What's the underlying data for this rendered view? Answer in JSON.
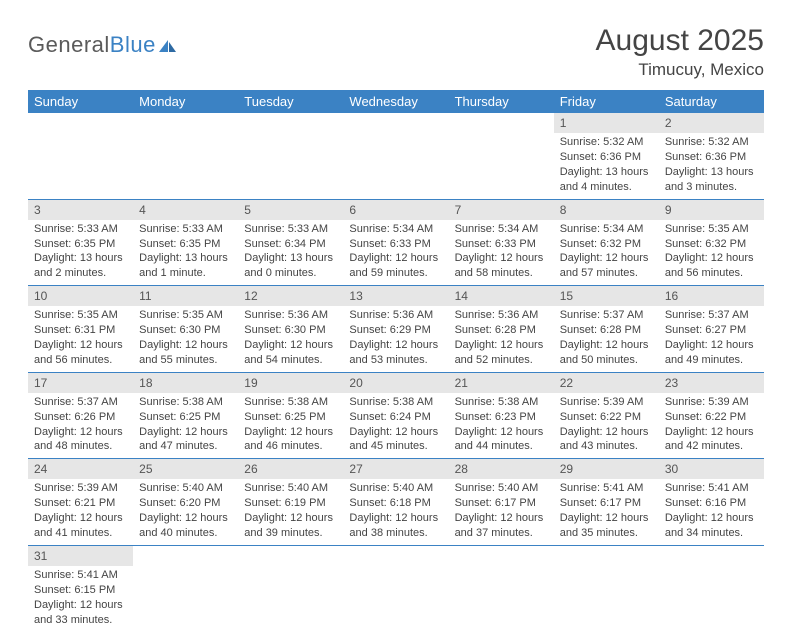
{
  "brand": {
    "part1": "General",
    "part2": "Blue"
  },
  "title": {
    "month": "August 2025",
    "location": "Timucuy, Mexico"
  },
  "colors": {
    "accent": "#3b82c4",
    "dayHeaderBg": "#e6e6e6",
    "text": "#444444"
  },
  "dayNames": [
    "Sunday",
    "Monday",
    "Tuesday",
    "Wednesday",
    "Thursday",
    "Friday",
    "Saturday"
  ],
  "weeks": [
    [
      null,
      null,
      null,
      null,
      null,
      {
        "n": "1",
        "sunrise": "Sunrise: 5:32 AM",
        "sunset": "Sunset: 6:36 PM",
        "day1": "Daylight: 13 hours",
        "day2": "and 4 minutes."
      },
      {
        "n": "2",
        "sunrise": "Sunrise: 5:32 AM",
        "sunset": "Sunset: 6:36 PM",
        "day1": "Daylight: 13 hours",
        "day2": "and 3 minutes."
      }
    ],
    [
      {
        "n": "3",
        "sunrise": "Sunrise: 5:33 AM",
        "sunset": "Sunset: 6:35 PM",
        "day1": "Daylight: 13 hours",
        "day2": "and 2 minutes."
      },
      {
        "n": "4",
        "sunrise": "Sunrise: 5:33 AM",
        "sunset": "Sunset: 6:35 PM",
        "day1": "Daylight: 13 hours",
        "day2": "and 1 minute."
      },
      {
        "n": "5",
        "sunrise": "Sunrise: 5:33 AM",
        "sunset": "Sunset: 6:34 PM",
        "day1": "Daylight: 13 hours",
        "day2": "and 0 minutes."
      },
      {
        "n": "6",
        "sunrise": "Sunrise: 5:34 AM",
        "sunset": "Sunset: 6:33 PM",
        "day1": "Daylight: 12 hours",
        "day2": "and 59 minutes."
      },
      {
        "n": "7",
        "sunrise": "Sunrise: 5:34 AM",
        "sunset": "Sunset: 6:33 PM",
        "day1": "Daylight: 12 hours",
        "day2": "and 58 minutes."
      },
      {
        "n": "8",
        "sunrise": "Sunrise: 5:34 AM",
        "sunset": "Sunset: 6:32 PM",
        "day1": "Daylight: 12 hours",
        "day2": "and 57 minutes."
      },
      {
        "n": "9",
        "sunrise": "Sunrise: 5:35 AM",
        "sunset": "Sunset: 6:32 PM",
        "day1": "Daylight: 12 hours",
        "day2": "and 56 minutes."
      }
    ],
    [
      {
        "n": "10",
        "sunrise": "Sunrise: 5:35 AM",
        "sunset": "Sunset: 6:31 PM",
        "day1": "Daylight: 12 hours",
        "day2": "and 56 minutes."
      },
      {
        "n": "11",
        "sunrise": "Sunrise: 5:35 AM",
        "sunset": "Sunset: 6:30 PM",
        "day1": "Daylight: 12 hours",
        "day2": "and 55 minutes."
      },
      {
        "n": "12",
        "sunrise": "Sunrise: 5:36 AM",
        "sunset": "Sunset: 6:30 PM",
        "day1": "Daylight: 12 hours",
        "day2": "and 54 minutes."
      },
      {
        "n": "13",
        "sunrise": "Sunrise: 5:36 AM",
        "sunset": "Sunset: 6:29 PM",
        "day1": "Daylight: 12 hours",
        "day2": "and 53 minutes."
      },
      {
        "n": "14",
        "sunrise": "Sunrise: 5:36 AM",
        "sunset": "Sunset: 6:28 PM",
        "day1": "Daylight: 12 hours",
        "day2": "and 52 minutes."
      },
      {
        "n": "15",
        "sunrise": "Sunrise: 5:37 AM",
        "sunset": "Sunset: 6:28 PM",
        "day1": "Daylight: 12 hours",
        "day2": "and 50 minutes."
      },
      {
        "n": "16",
        "sunrise": "Sunrise: 5:37 AM",
        "sunset": "Sunset: 6:27 PM",
        "day1": "Daylight: 12 hours",
        "day2": "and 49 minutes."
      }
    ],
    [
      {
        "n": "17",
        "sunrise": "Sunrise: 5:37 AM",
        "sunset": "Sunset: 6:26 PM",
        "day1": "Daylight: 12 hours",
        "day2": "and 48 minutes."
      },
      {
        "n": "18",
        "sunrise": "Sunrise: 5:38 AM",
        "sunset": "Sunset: 6:25 PM",
        "day1": "Daylight: 12 hours",
        "day2": "and 47 minutes."
      },
      {
        "n": "19",
        "sunrise": "Sunrise: 5:38 AM",
        "sunset": "Sunset: 6:25 PM",
        "day1": "Daylight: 12 hours",
        "day2": "and 46 minutes."
      },
      {
        "n": "20",
        "sunrise": "Sunrise: 5:38 AM",
        "sunset": "Sunset: 6:24 PM",
        "day1": "Daylight: 12 hours",
        "day2": "and 45 minutes."
      },
      {
        "n": "21",
        "sunrise": "Sunrise: 5:38 AM",
        "sunset": "Sunset: 6:23 PM",
        "day1": "Daylight: 12 hours",
        "day2": "and 44 minutes."
      },
      {
        "n": "22",
        "sunrise": "Sunrise: 5:39 AM",
        "sunset": "Sunset: 6:22 PM",
        "day1": "Daylight: 12 hours",
        "day2": "and 43 minutes."
      },
      {
        "n": "23",
        "sunrise": "Sunrise: 5:39 AM",
        "sunset": "Sunset: 6:22 PM",
        "day1": "Daylight: 12 hours",
        "day2": "and 42 minutes."
      }
    ],
    [
      {
        "n": "24",
        "sunrise": "Sunrise: 5:39 AM",
        "sunset": "Sunset: 6:21 PM",
        "day1": "Daylight: 12 hours",
        "day2": "and 41 minutes."
      },
      {
        "n": "25",
        "sunrise": "Sunrise: 5:40 AM",
        "sunset": "Sunset: 6:20 PM",
        "day1": "Daylight: 12 hours",
        "day2": "and 40 minutes."
      },
      {
        "n": "26",
        "sunrise": "Sunrise: 5:40 AM",
        "sunset": "Sunset: 6:19 PM",
        "day1": "Daylight: 12 hours",
        "day2": "and 39 minutes."
      },
      {
        "n": "27",
        "sunrise": "Sunrise: 5:40 AM",
        "sunset": "Sunset: 6:18 PM",
        "day1": "Daylight: 12 hours",
        "day2": "and 38 minutes."
      },
      {
        "n": "28",
        "sunrise": "Sunrise: 5:40 AM",
        "sunset": "Sunset: 6:17 PM",
        "day1": "Daylight: 12 hours",
        "day2": "and 37 minutes."
      },
      {
        "n": "29",
        "sunrise": "Sunrise: 5:41 AM",
        "sunset": "Sunset: 6:17 PM",
        "day1": "Daylight: 12 hours",
        "day2": "and 35 minutes."
      },
      {
        "n": "30",
        "sunrise": "Sunrise: 5:41 AM",
        "sunset": "Sunset: 6:16 PM",
        "day1": "Daylight: 12 hours",
        "day2": "and 34 minutes."
      }
    ],
    [
      {
        "n": "31",
        "sunrise": "Sunrise: 5:41 AM",
        "sunset": "Sunset: 6:15 PM",
        "day1": "Daylight: 12 hours",
        "day2": "and 33 minutes."
      },
      null,
      null,
      null,
      null,
      null,
      null
    ]
  ]
}
